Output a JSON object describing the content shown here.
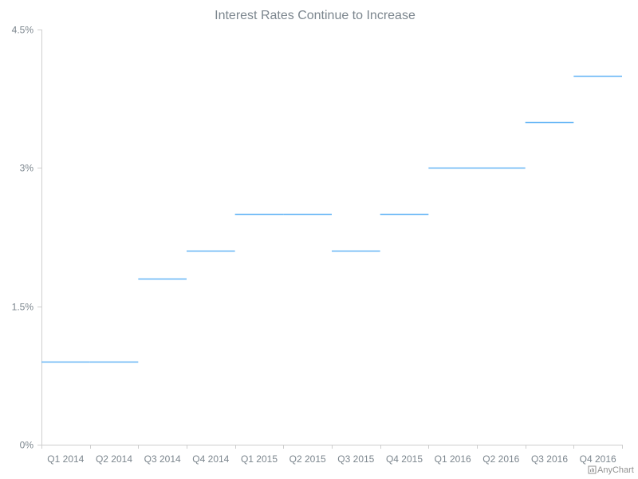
{
  "chart_data": {
    "type": "line",
    "subtype": "step",
    "title": "Interest Rates Continue to Increase",
    "categories": [
      "Q1 2014",
      "Q2 2014",
      "Q3 2014",
      "Q4 2014",
      "Q1 2015",
      "Q2 2015",
      "Q3 2015",
      "Q4 2015",
      "Q1 2016",
      "Q2 2016",
      "Q3 2016",
      "Q4 2016"
    ],
    "series": [
      {
        "values": [
          0.9,
          0.9,
          1.8,
          2.1,
          2.5,
          2.5,
          2.1,
          2.5,
          3.0,
          3.0,
          3.5,
          4.0
        ]
      }
    ],
    "ylim": [
      0,
      4.5
    ],
    "y_ticks": [
      0,
      1.5,
      3,
      4.5
    ],
    "y_tick_labels": [
      "0%",
      "1.5%",
      "3%",
      "4.5%"
    ],
    "xlabel": "",
    "ylabel": "",
    "grid": false,
    "legend": "none",
    "series_color": "#64b5f6"
  },
  "credit": {
    "label": "AnyChart",
    "icon": "bar-chart-icon"
  }
}
